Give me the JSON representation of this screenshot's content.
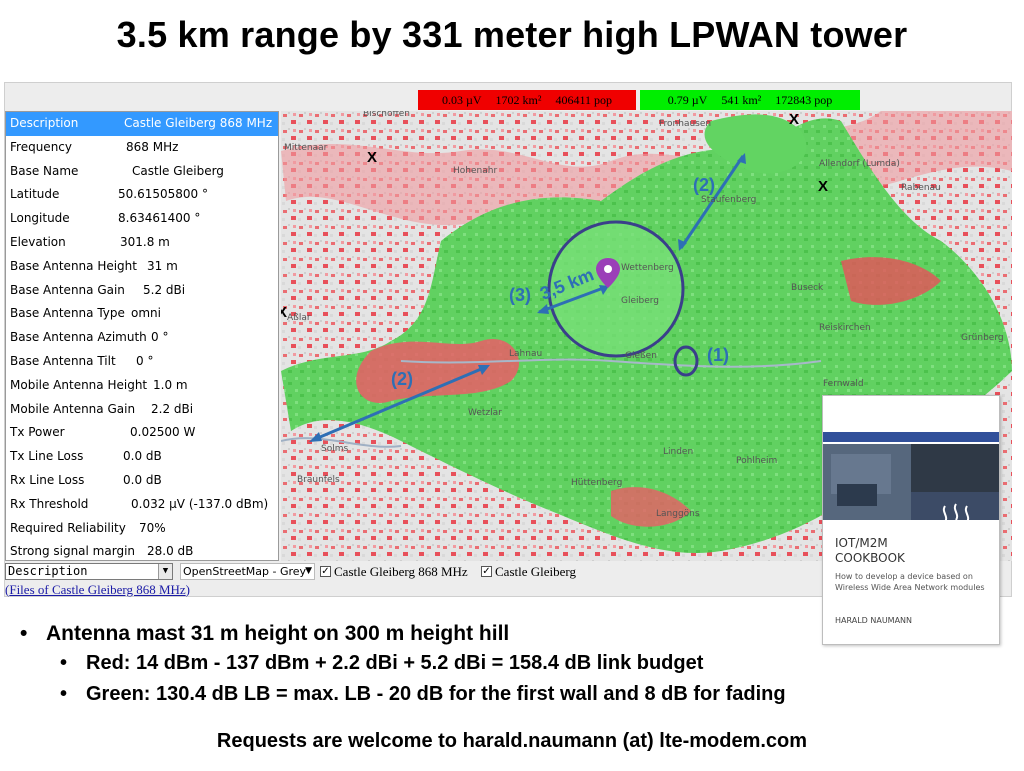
{
  "slide": {
    "title": "3.5 km range by 331 meter high LPWAN tower",
    "bullets": [
      "Antenna mast 31 m height on 300 m height hill",
      "Red: 14 dBm - 137 dBm + 2.2 dBi + 5.2 dBi = 158.4 dB link budget",
      "Green: 130.4 dB LB = max. LB - 20 dB for the first wall and 8 dB for fading"
    ],
    "footer": "Requests are welcome to  harald.naumann (at) lte-modem.com"
  },
  "legend": {
    "red": {
      "signal": "0.03 µV",
      "area": "1702 km²",
      "pop": "406411 pop",
      "color": "#f00000"
    },
    "green": {
      "signal": "0.79 µV",
      "area": "541 km²",
      "pop": "172843 pop",
      "color": "#00ee00"
    }
  },
  "info_panel": {
    "rows": [
      {
        "key": "Description",
        "value": "Castle Gleiberg 868 MHz",
        "selected": true
      },
      {
        "key": "Frequency",
        "value": "868 MHz"
      },
      {
        "key": "Base Name",
        "value": "Castle Gleiberg"
      },
      {
        "key": "Latitude",
        "value": "50.61505800 °"
      },
      {
        "key": "Longitude",
        "value": "8.63461400 °"
      },
      {
        "key": "Elevation",
        "value": "301.8 m"
      },
      {
        "key": "Base Antenna Height",
        "value": "31 m"
      },
      {
        "key": "Base Antenna Gain",
        "value": "5.2 dBi"
      },
      {
        "key": "Base Antenna Type",
        "value": "omni"
      },
      {
        "key": "Base Antenna Azimuth",
        "value": "0 °"
      },
      {
        "key": "Base Antenna Tilt",
        "value": "0 °"
      },
      {
        "key": "Mobile Antenna Height",
        "value": "1.0 m"
      },
      {
        "key": "Mobile Antenna Gain",
        "value": "2.2 dBi"
      },
      {
        "key": "Tx Power",
        "value": "0.02500 W"
      },
      {
        "key": "Tx Line Loss",
        "value": "0.0 dB"
      },
      {
        "key": "Rx Line Loss",
        "value": "0.0 dB"
      },
      {
        "key": "Rx Threshold",
        "value": "0.032 µV (-137.0 dBm)"
      },
      {
        "key": "Required Reliability",
        "value": "70%"
      },
      {
        "key": "Strong signal margin",
        "value": "28.0 dB"
      }
    ]
  },
  "map": {
    "place_labels": [
      "Bischoffen",
      "Mittenaar",
      "Hohenahr",
      "Fronhausen",
      "Allendorf (Lumda)",
      "Rabenau",
      "Staufenberg",
      "Buseck",
      "Reiskirchen",
      "Grünberg",
      "Lahnau",
      "Wettenberg",
      "Gießen",
      "Fernwald",
      "Wetzlar",
      "Linden",
      "Solms",
      "Braunfels",
      "Hüttenberg",
      "Langgöns",
      "Pohlheim",
      "Gleiberg",
      "Aßlar"
    ],
    "annotations": {
      "range": "3,5 km",
      "label_1": "(1)",
      "label_2a": "(2)",
      "label_2b": "(2)",
      "label_3": "(3)",
      "x_mark": "X"
    },
    "colors": {
      "green": "#5ed35e",
      "red": "#e8505a",
      "arrow": "#2e6fb5",
      "circle": "#3a3f8a",
      "pin": "#9b3fb8"
    }
  },
  "toolbar": {
    "description_select": "Description",
    "map_select": "OpenStreetMap - Grey",
    "check_1": "Castle Gleiberg 868 MHz",
    "check_2": "Castle Gleiberg",
    "files_link": "Files of Castle Gleiberg 868 MHz"
  },
  "book": {
    "title_line1": "IOT/M2M",
    "title_line2": "COOKBOOK",
    "subtitle": "How to develop a device based on Wireless Wide Area Network modules",
    "author": "HARALD NAUMANN"
  }
}
